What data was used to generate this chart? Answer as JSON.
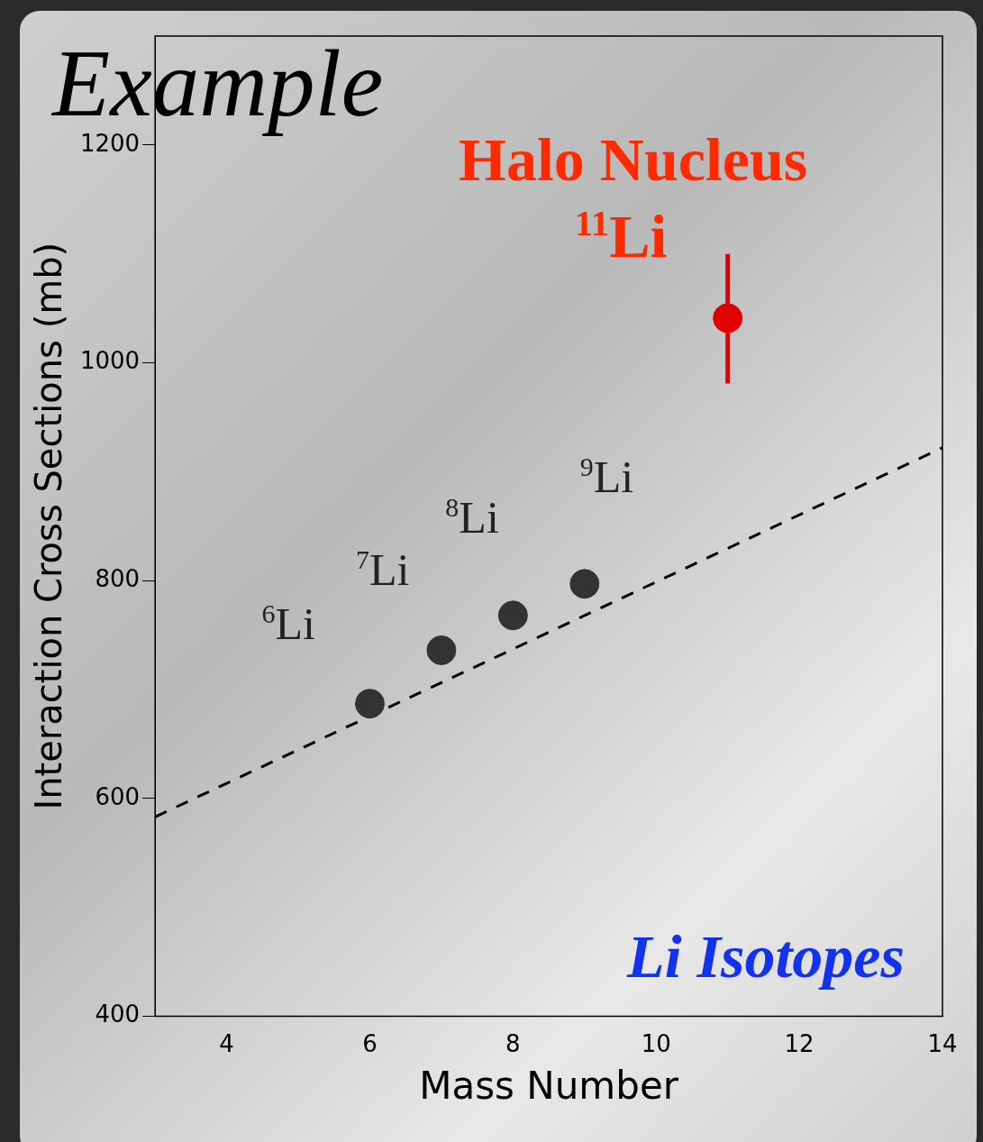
{
  "chart_data": {
    "type": "scatter",
    "xlabel": "Mass Number",
    "ylabel": "Interaction Cross Sections (mb)",
    "xlim": [
      3,
      14
    ],
    "xticks": [
      4,
      6,
      8,
      10,
      12,
      14
    ],
    "ylim": [
      400,
      1300
    ],
    "yticks": [
      400,
      600,
      800,
      1000,
      1200
    ],
    "grid": false,
    "legend": false,
    "marker": "circle",
    "series": [
      {
        "color": "#333333",
        "x": [
          6,
          7,
          8,
          9
        ],
        "values": [
          687,
          736,
          768,
          797
        ]
      },
      {
        "color": "#e00000",
        "x": [
          11
        ],
        "values": [
          1041
        ],
        "errors": [
          [
            981,
            1100
          ]
        ]
      },
      {
        "type": "line",
        "color": "#000000",
        "line_style": "dashed",
        "marker": "none",
        "x": [
          3,
          14
        ],
        "values": [
          583,
          922
        ]
      }
    ],
    "annotations": [
      "Example",
      {
        "text": "$^{6}$Li",
        "x": 6,
        "y": 687
      },
      {
        "text": "$^{7}$Li",
        "x": 7,
        "y": 736
      },
      {
        "text": "$^{8}$Li",
        "x": 8,
        "y": 768
      },
      {
        "text": "$^{9}$Li",
        "x": 9,
        "y": 797
      },
      {
        "text": "Halo Nucleus",
        "x": 11,
        "y": 1041
      },
      {
        "text": "$^{11}$Li",
        "x": 11,
        "y": 1041
      },
      "Li Isotopes"
    ]
  }
}
